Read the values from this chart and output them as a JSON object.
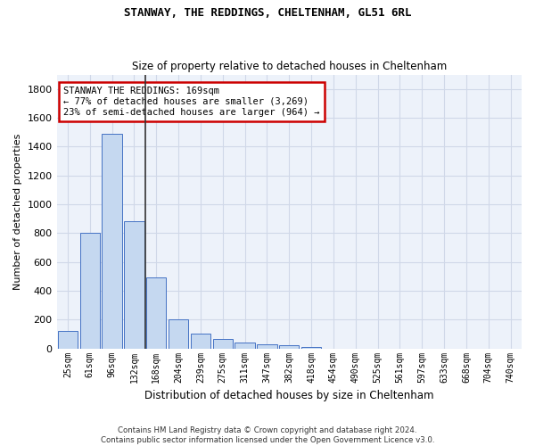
{
  "title1": "STANWAY, THE REDDINGS, CHELTENHAM, GL51 6RL",
  "title2": "Size of property relative to detached houses in Cheltenham",
  "xlabel": "Distribution of detached houses by size in Cheltenham",
  "ylabel": "Number of detached properties",
  "footnote": "Contains HM Land Registry data © Crown copyright and database right 2024.\nContains public sector information licensed under the Open Government Licence v3.0.",
  "bin_labels": [
    "25sqm",
    "61sqm",
    "96sqm",
    "132sqm",
    "168sqm",
    "204sqm",
    "239sqm",
    "275sqm",
    "311sqm",
    "347sqm",
    "382sqm",
    "418sqm",
    "454sqm",
    "490sqm",
    "525sqm",
    "561sqm",
    "597sqm",
    "633sqm",
    "668sqm",
    "704sqm",
    "740sqm"
  ],
  "bar_values": [
    120,
    800,
    1490,
    880,
    490,
    205,
    105,
    65,
    40,
    30,
    25,
    10,
    0,
    0,
    0,
    0,
    0,
    0,
    0,
    0,
    0
  ],
  "bar_color": "#c5d8f0",
  "bar_edge_color": "#4472c4",
  "vline_x_index": 3.5,
  "vline_color": "#333333",
  "annotation_text": "STANWAY THE REDDINGS: 169sqm\n← 77% of detached houses are smaller (3,269)\n23% of semi-detached houses are larger (964) →",
  "annotation_box_color": "#ffffff",
  "annotation_box_edge_color": "#cc0000",
  "ylim": [
    0,
    1900
  ],
  "yticks": [
    0,
    200,
    400,
    600,
    800,
    1000,
    1200,
    1400,
    1600,
    1800
  ],
  "grid_color": "#d0d8e8",
  "background_color": "#ffffff",
  "plot_background": "#edf2fa"
}
